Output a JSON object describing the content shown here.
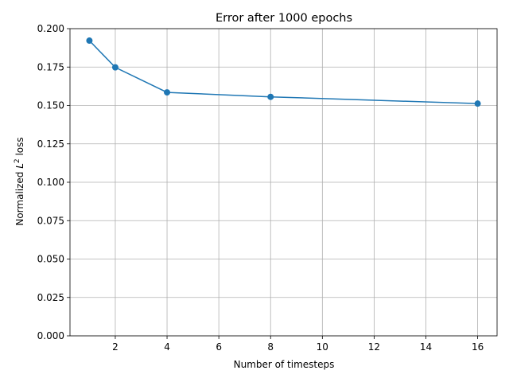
{
  "chart_data": {
    "type": "line",
    "title": "Error after 1000 epochs",
    "xlabel": "Number of timesteps",
    "ylabel": {
      "prefix": "Normalized ",
      "symbol": "L",
      "superscript": "2",
      "suffix": " loss"
    },
    "xlim": [
      0.25,
      16.75
    ],
    "ylim": [
      0.0,
      0.2
    ],
    "xticks": [
      2,
      4,
      6,
      8,
      10,
      12,
      14,
      16
    ],
    "xtick_labels": [
      "2",
      "4",
      "6",
      "8",
      "10",
      "12",
      "14",
      "16"
    ],
    "yticks": [
      0.0,
      0.025,
      0.05,
      0.075,
      0.1,
      0.125,
      0.15,
      0.175,
      0.2
    ],
    "ytick_labels": [
      "0.000",
      "0.025",
      "0.050",
      "0.075",
      "0.100",
      "0.125",
      "0.150",
      "0.175",
      "0.200"
    ],
    "grid": true,
    "series": [
      {
        "color": "#1f77b4",
        "marker": "circle",
        "x": [
          1,
          2,
          4,
          8,
          16
        ],
        "y": [
          0.1922,
          0.1748,
          0.1585,
          0.1556,
          0.1512
        ]
      }
    ]
  }
}
